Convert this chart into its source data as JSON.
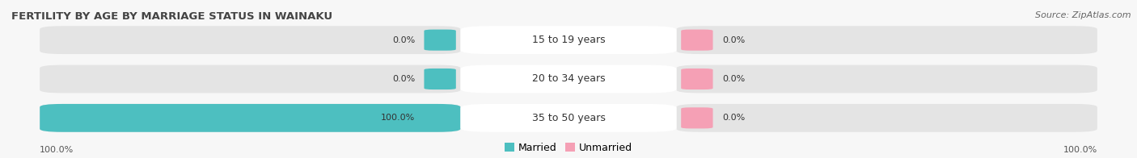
{
  "title": "FERTILITY BY AGE BY MARRIAGE STATUS IN WAINAKU",
  "source": "Source: ZipAtlas.com",
  "categories": [
    "15 to 19 years",
    "20 to 34 years",
    "35 to 50 years"
  ],
  "married_values": [
    0.0,
    0.0,
    100.0
  ],
  "unmarried_values": [
    0.0,
    0.0,
    0.0
  ],
  "married_color": "#4dbfc0",
  "unmarried_color": "#f5a0b5",
  "bar_bg_color": "#e4e4e4",
  "bar_bg_color2": "#eeeeee",
  "title_fontsize": 9.5,
  "source_fontsize": 8,
  "label_fontsize": 8,
  "category_fontsize": 9,
  "legend_fontsize": 9,
  "tick_fontsize": 8,
  "bg_color": "#f7f7f7",
  "title_color": "#444444",
  "source_color": "#666666",
  "label_color": "#333333",
  "tick_color": "#555555",
  "center_label_bg": "#ffffff"
}
